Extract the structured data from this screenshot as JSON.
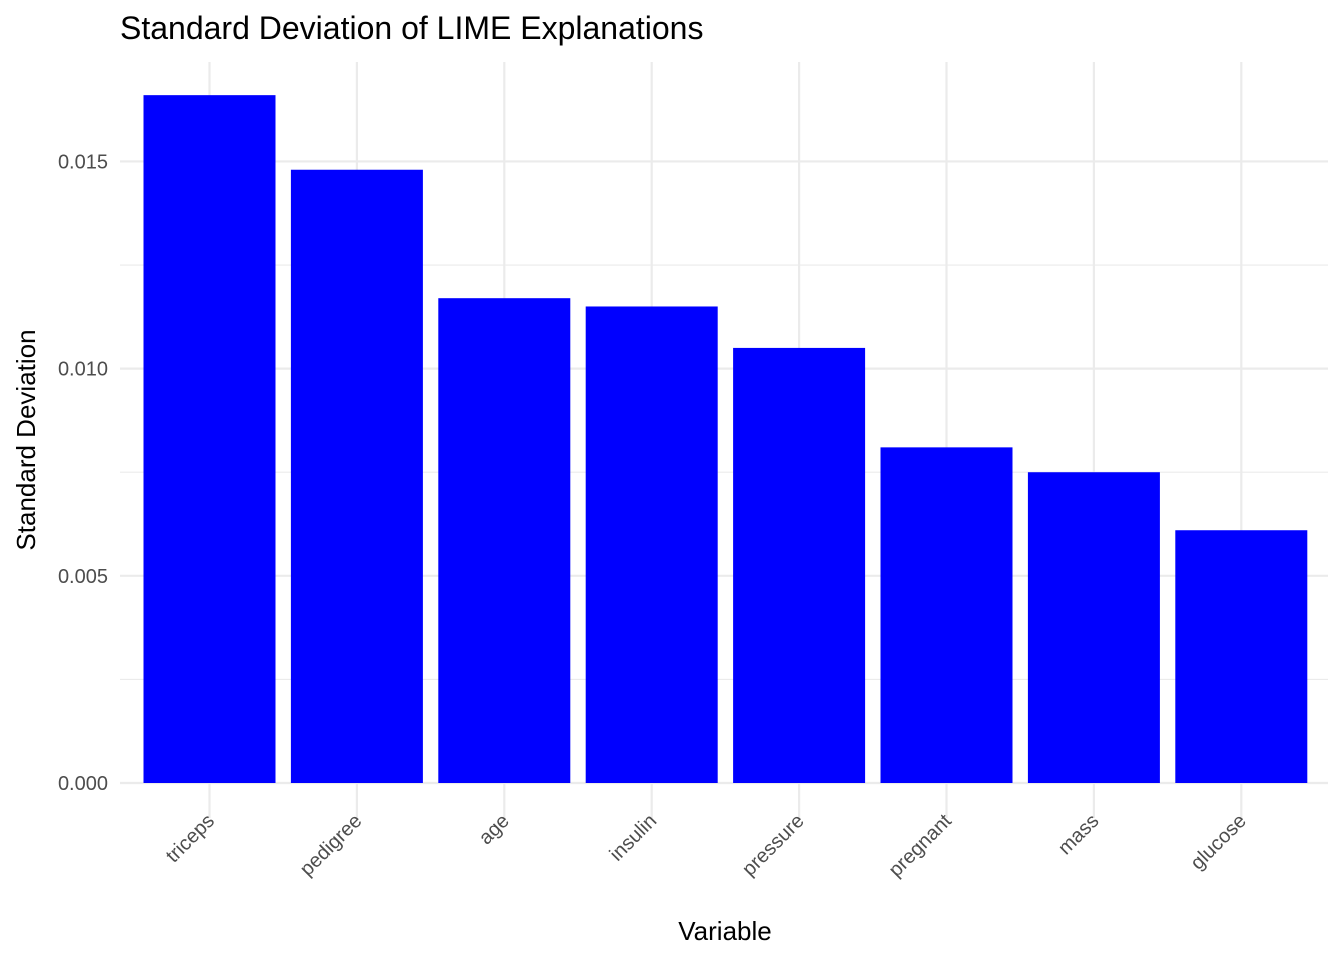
{
  "chart_data": {
    "type": "bar",
    "title": "Standard Deviation of LIME Explanations",
    "xlabel": "Variable",
    "ylabel": "Standard Deviation",
    "categories": [
      "triceps",
      "pedigree",
      "age",
      "insulin",
      "pressure",
      "pregnant",
      "mass",
      "glucose"
    ],
    "values": [
      0.0166,
      0.0148,
      0.0117,
      0.0115,
      0.0105,
      0.0081,
      0.0075,
      0.0061
    ],
    "ylim": [
      0,
      0.0174
    ],
    "yticks": [
      0.0,
      0.005,
      0.01,
      0.015
    ],
    "ytick_labels": [
      "0.000",
      "0.005",
      "0.010",
      "0.015"
    ],
    "bar_color": "#0000ff",
    "grid": true,
    "legend": "none"
  }
}
